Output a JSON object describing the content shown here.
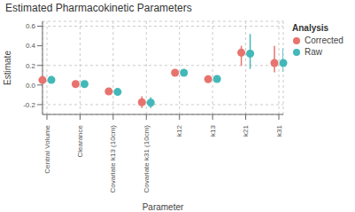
{
  "chart_data": {
    "type": "errorbar",
    "title": "Estimated Pharmacokinetic Parameters",
    "xlabel": "Parameter",
    "ylabel": "Estimate",
    "categories": [
      "Central Volume",
      "Clearance",
      "Covariate k13 (10cm)",
      "Covariate k31 (10cm)",
      "k12",
      "k13",
      "k21",
      "k31"
    ],
    "series": [
      {
        "name": "Corrected",
        "color": "#e8736e",
        "marker": "circle",
        "values": [
          0.05,
          0.01,
          -0.065,
          -0.175,
          0.125,
          0.06,
          0.33,
          0.225
        ],
        "lowers": [
          0.042,
          0.006,
          -0.095,
          -0.235,
          0.095,
          0.045,
          0.195,
          0.13
        ],
        "uppers": [
          0.058,
          0.016,
          -0.035,
          -0.115,
          0.155,
          0.075,
          0.4,
          0.4
        ]
      },
      {
        "name": "Raw",
        "color": "#43b8b8",
        "marker": "circle",
        "values": [
          0.052,
          0.01,
          -0.07,
          -0.18,
          0.125,
          0.062,
          0.32,
          0.225
        ],
        "lowers": [
          0.044,
          0.006,
          -0.095,
          -0.235,
          0.095,
          0.047,
          0.165,
          0.135
        ],
        "uppers": [
          0.06,
          0.016,
          -0.045,
          -0.125,
          0.155,
          0.077,
          0.52,
          0.375
        ]
      }
    ],
    "ylim": [
      -0.3,
      0.65
    ],
    "yticks": [
      -0.2,
      {
        "value": 0,
        "label": "0.0"
      },
      0.2,
      0.4,
      0.6
    ],
    "grid": true,
    "legend": "right",
    "legend_title": "Analysis"
  }
}
